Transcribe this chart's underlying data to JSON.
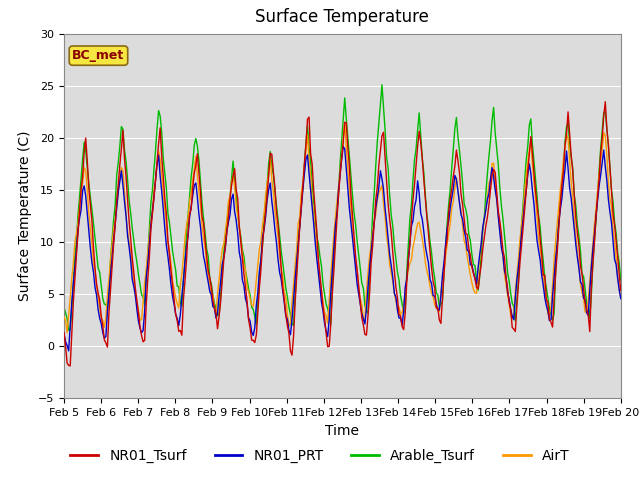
{
  "title": "Surface Temperature",
  "xlabel": "Time",
  "ylabel": "Surface Temperature (C)",
  "ylim": [
    -5,
    30
  ],
  "xlim_days": [
    0,
    15
  ],
  "x_tick_labels": [
    "Feb 5",
    "Feb 6",
    "Feb 7",
    "Feb 8",
    "Feb 9",
    "Feb 10",
    "Feb 11",
    "Feb 12",
    "Feb 13",
    "Feb 14",
    "Feb 15",
    "Feb 16",
    "Feb 17",
    "Feb 18",
    "Feb 19",
    "Feb 20"
  ],
  "colors": {
    "NR01_Tsurf": "#cc0000",
    "NR01_PRT": "#0000cc",
    "Arable_Tsurf": "#00bb00",
    "AirT": "#ff9900"
  },
  "legend_labels": [
    "NR01_Tsurf",
    "NR01_PRT",
    "Arable_Tsurf",
    "AirT"
  ],
  "annotation_text": "BC_met",
  "annotation_color": "#8B0000",
  "annotation_bg": "#f5e642",
  "plot_bg_color": "#dcdcdc",
  "fig_bg_color": "#ffffff",
  "grid_color": "#ffffff",
  "title_fontsize": 12,
  "axis_label_fontsize": 10,
  "tick_fontsize": 8,
  "legend_fontsize": 10
}
